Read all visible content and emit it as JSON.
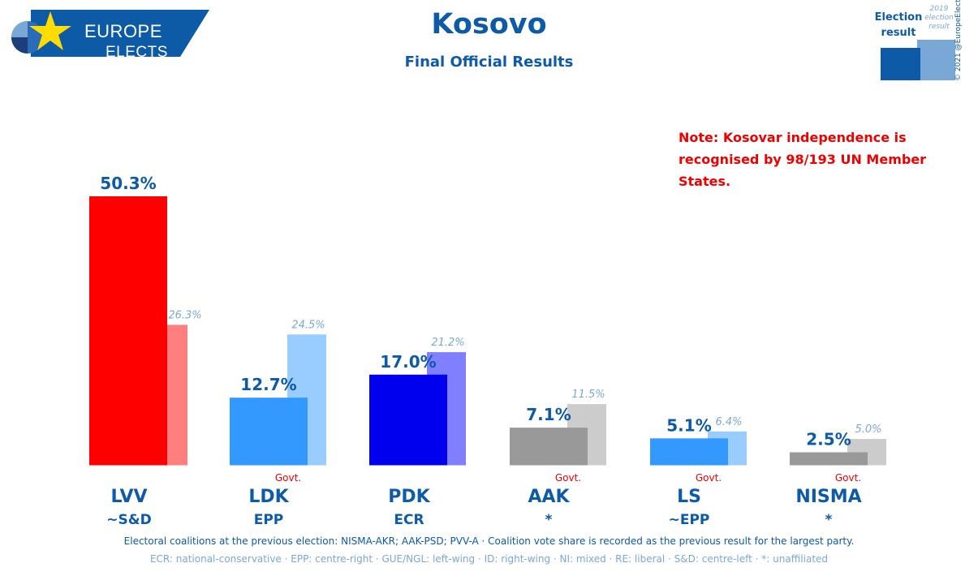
{
  "logo": {
    "line1": "EUROPE",
    "line2": "ELECTS"
  },
  "header": {
    "title": "Kosovo",
    "subtitle": "Final Official Results"
  },
  "legend": {
    "current": "Election result",
    "previous": "2019 election result"
  },
  "copyright": "© 2021 @EuropeElects",
  "note": "Note: Kosovar independence is recognised by 98/193 UN Member States.",
  "chart_data": {
    "type": "bar",
    "categories": [
      "LVV",
      "LDK",
      "PDK",
      "AAK",
      "LS",
      "NISMA"
    ],
    "groups": [
      "~S&D",
      "EPP",
      "ECR",
      "*",
      "~EPP",
      "*"
    ],
    "series": [
      {
        "values": [
          50.3,
          12.7,
          17.0,
          7.1,
          5.1,
          2.5
        ],
        "labels": [
          "50.3%",
          "12.7%",
          "17.0%",
          "7.1%",
          "5.1%",
          "2.5%"
        ]
      },
      {
        "values": [
          26.3,
          24.5,
          21.2,
          11.5,
          6.4,
          5.0
        ],
        "labels": [
          "26.3%",
          "24.5%",
          "21.2%",
          "11.5%",
          "6.4%",
          "5.0%"
        ]
      }
    ],
    "govt_label": "Govt.",
    "govt": [
      false,
      true,
      false,
      true,
      true,
      true
    ],
    "colors": [
      "#ff0000",
      "#3399ff",
      "#0000ee",
      "#999999",
      "#3399ff",
      "#999999"
    ],
    "prev_colors": [
      "#ff7f7f",
      "#99ccff",
      "#7f7fff",
      "#cccccc",
      "#99ccff",
      "#cccccc"
    ],
    "ylim": [
      0,
      52
    ]
  },
  "footer": {
    "line1": "Electoral coalitions at the previous election: NISMA-AKR; AAK-PSD; PVV-A · Coalition vote share is recorded as the previous result for the largest party.",
    "line2": "ECR: national-conservative · EPP: centre-right · GUE/NGL: left-wing · ID: right-wing · NI: mixed · RE: liberal · S&D: centre-left · *: unaffiliated"
  }
}
